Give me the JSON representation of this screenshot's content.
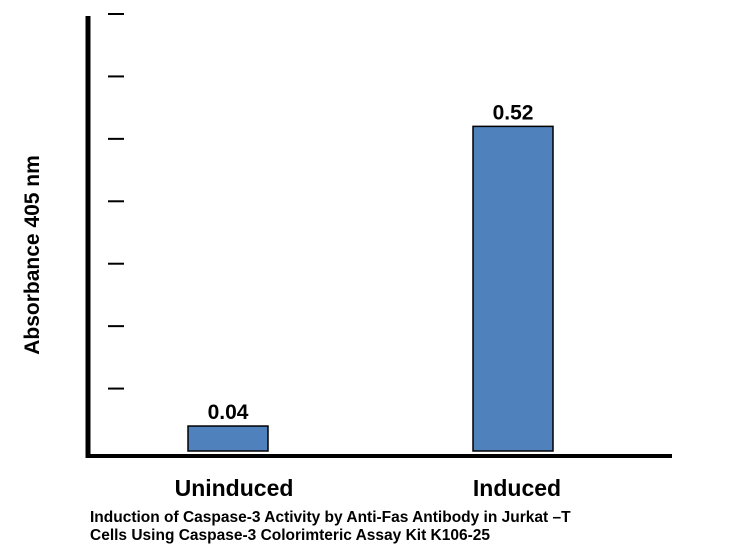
{
  "chart_data": {
    "type": "bar",
    "title": "",
    "xlabel": "",
    "ylabel": "Absorbance 405 nm",
    "categories": [
      "Uninduced",
      "Induced"
    ],
    "values": [
      0.04,
      0.52
    ],
    "data_labels": [
      "0.04",
      "0.52"
    ],
    "ylim": [
      0,
      0.7
    ],
    "y_tick_count": 7,
    "y_tick_labels_shown": false,
    "grid": false,
    "legend": "none",
    "bar_color": "#4f81bd",
    "bar_edge_color": "#000000"
  },
  "caption": {
    "line1": "Induction of Caspase-3 Activity by Anti-Fas Antibody in Jurkat –T",
    "line2": "Cells Using Caspase-3 Colorimteric Assay Kit K106-25"
  }
}
